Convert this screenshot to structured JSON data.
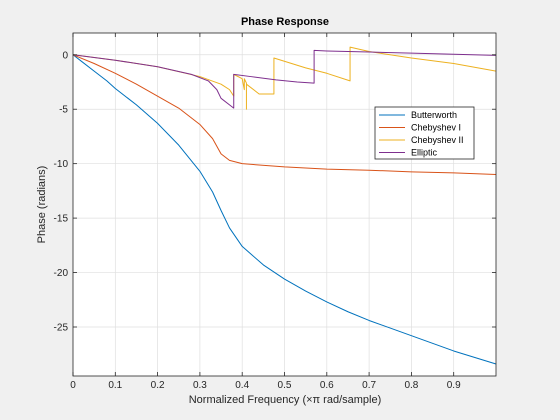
{
  "chart_data": {
    "type": "line",
    "title": "Phase Response",
    "xlabel": "Normalized Frequency  (×π rad/sample)",
    "ylabel": "Phase (radians)",
    "xlim": [
      0,
      1
    ],
    "ylim": [
      -29.5,
      2
    ],
    "xticks": [
      0,
      0.1,
      0.2,
      0.3,
      0.4,
      0.5,
      0.6,
      0.7,
      0.8,
      0.9
    ],
    "xtick_labels": [
      "0",
      "0.1",
      "0.2",
      "0.3",
      "0.4",
      "0.5",
      "0.6",
      "0.7",
      "0.8",
      "0.9"
    ],
    "yticks": [
      0,
      -5,
      -10,
      -15,
      -20,
      -25
    ],
    "ytick_labels": [
      "0",
      "-5",
      "-10",
      "-15",
      "-20",
      "-25"
    ],
    "grid": true,
    "legend_position": "upper-right",
    "series": [
      {
        "name": "Butterworth",
        "color": "#0072BD",
        "points": [
          [
            0,
            0
          ],
          [
            0.02,
            -0.6
          ],
          [
            0.05,
            -1.5
          ],
          [
            0.08,
            -2.4
          ],
          [
            0.1,
            -3.1
          ],
          [
            0.15,
            -4.6
          ],
          [
            0.2,
            -6.3
          ],
          [
            0.25,
            -8.3
          ],
          [
            0.3,
            -10.7
          ],
          [
            0.33,
            -12.6
          ],
          [
            0.35,
            -14.3
          ],
          [
            0.37,
            -15.9
          ],
          [
            0.4,
            -17.6
          ],
          [
            0.45,
            -19.3
          ],
          [
            0.5,
            -20.6
          ],
          [
            0.55,
            -21.7
          ],
          [
            0.6,
            -22.7
          ],
          [
            0.65,
            -23.6
          ],
          [
            0.7,
            -24.4
          ],
          [
            0.75,
            -25.1
          ],
          [
            0.8,
            -25.8
          ],
          [
            0.85,
            -26.5
          ],
          [
            0.9,
            -27.2
          ],
          [
            0.95,
            -27.8
          ],
          [
            1.0,
            -28.4
          ]
        ]
      },
      {
        "name": "Chebyshev I",
        "color": "#D95319",
        "points": [
          [
            0,
            0
          ],
          [
            0.05,
            -0.8
          ],
          [
            0.1,
            -1.7
          ],
          [
            0.15,
            -2.7
          ],
          [
            0.2,
            -3.8
          ],
          [
            0.25,
            -4.9
          ],
          [
            0.3,
            -6.4
          ],
          [
            0.33,
            -7.7
          ],
          [
            0.35,
            -9.1
          ],
          [
            0.37,
            -9.7
          ],
          [
            0.4,
            -10.0
          ],
          [
            0.5,
            -10.3
          ],
          [
            0.6,
            -10.5
          ],
          [
            0.7,
            -10.6
          ],
          [
            0.8,
            -10.75
          ],
          [
            0.9,
            -10.85
          ],
          [
            1.0,
            -11.0
          ]
        ]
      },
      {
        "name": "Chebyshev II",
        "color": "#EDB120",
        "points": [
          [
            0,
            0
          ],
          [
            0.1,
            -0.5
          ],
          [
            0.2,
            -1.1
          ],
          [
            0.3,
            -2.0
          ],
          [
            0.35,
            -2.7
          ],
          [
            0.37,
            -3.2
          ],
          [
            0.38,
            -3.8
          ],
          [
            0.38,
            -1.8
          ],
          [
            0.4,
            -2.2
          ],
          [
            0.405,
            -3.2
          ],
          [
            0.405,
            -2.2
          ],
          [
            0.41,
            -2.6
          ],
          [
            0.41,
            -5.0
          ],
          [
            0.41,
            -2.7
          ],
          [
            0.44,
            -3.6
          ],
          [
            0.475,
            -3.6
          ],
          [
            0.475,
            -0.3
          ],
          [
            0.55,
            -1.2
          ],
          [
            0.6,
            -1.7
          ],
          [
            0.655,
            -2.4
          ],
          [
            0.655,
            0.7
          ],
          [
            0.7,
            0.3
          ],
          [
            0.8,
            -0.3
          ],
          [
            0.9,
            -0.8
          ],
          [
            1.0,
            -1.5
          ]
        ]
      },
      {
        "name": "Elliptic",
        "color": "#7E2F8E",
        "points": [
          [
            0,
            0
          ],
          [
            0.1,
            -0.5
          ],
          [
            0.2,
            -1.1
          ],
          [
            0.28,
            -1.8
          ],
          [
            0.32,
            -2.4
          ],
          [
            0.34,
            -3.2
          ],
          [
            0.35,
            -4.0
          ],
          [
            0.37,
            -4.6
          ],
          [
            0.38,
            -4.9
          ],
          [
            0.38,
            -1.8
          ],
          [
            0.42,
            -2.0
          ],
          [
            0.48,
            -2.3
          ],
          [
            0.53,
            -2.5
          ],
          [
            0.57,
            -2.6
          ],
          [
            0.57,
            0.4
          ],
          [
            0.6,
            0.35
          ],
          [
            0.7,
            0.25
          ],
          [
            0.8,
            0.15
          ],
          [
            0.9,
            0.05
          ],
          [
            1.0,
            -0.05
          ]
        ]
      }
    ]
  }
}
